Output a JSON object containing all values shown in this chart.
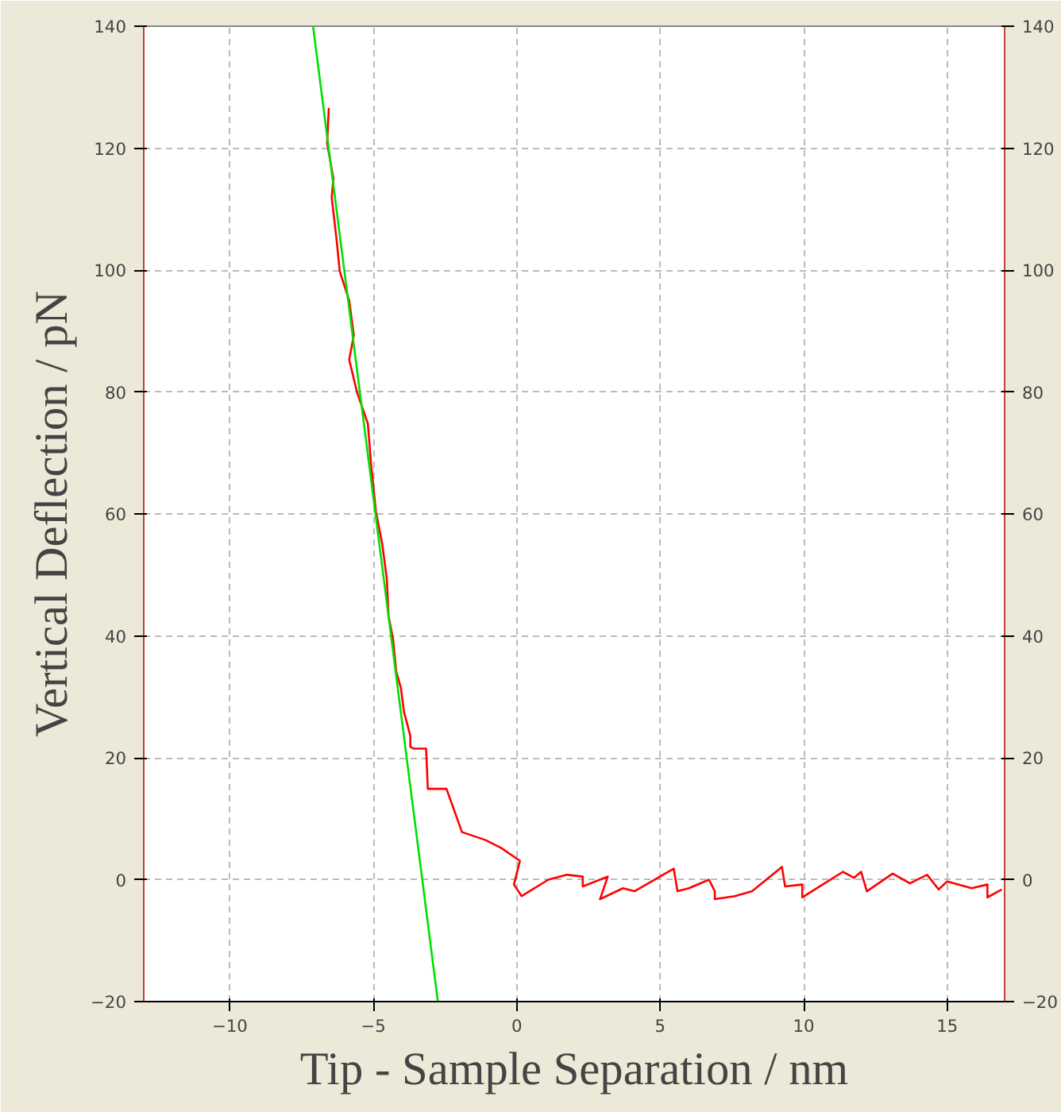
{
  "chart_data": {
    "type": "line",
    "xlabel": "Tip - Sample Separation / nm",
    "ylabel": "Vertical Deflection / pN",
    "xlim": [
      -13,
      17
    ],
    "xticks": [
      -10,
      -5,
      0,
      5,
      10,
      15
    ],
    "ylim": [
      -20,
      140
    ],
    "yticks": [
      -20,
      0,
      20,
      40,
      60,
      80,
      100,
      120,
      140
    ],
    "y2lim": [
      -20,
      140
    ],
    "y2ticks": [
      -20,
      0,
      20,
      40,
      60,
      80,
      100,
      120,
      140
    ],
    "grid": true,
    "line_style": "solid",
    "marker": "none",
    "series": [
      {
        "color": "#ff0000",
        "x": [
          -6.55,
          -6.61,
          -6.39,
          -6.45,
          -6.28,
          -6.17,
          -5.84,
          -5.68,
          -5.84,
          -5.57,
          -5.19,
          -5.08,
          -4.91,
          -4.69,
          -4.53,
          -4.47,
          -4.31,
          -4.2,
          -4.04,
          -3.93,
          -3.71,
          -3.71,
          -3.6,
          -3.16,
          -3.1,
          -2.45,
          -1.91,
          -1.09,
          -0.54,
          0.11,
          -0.1,
          0.17,
          1.1,
          1.75,
          2.3,
          2.3,
          3.17,
          2.9,
          3.7,
          4.1,
          5.47,
          5.6,
          6.0,
          6.7,
          6.9,
          6.9,
          7.6,
          8.2,
          9.24,
          9.35,
          9.95,
          9.95,
          11.37,
          11.75,
          12.0,
          12.2,
          13.1,
          13.7,
          14.3,
          14.7,
          15.0,
          15.85,
          16.4,
          16.4,
          16.9
        ],
        "values": [
          126.6,
          120.8,
          115,
          111.9,
          105,
          99.8,
          95,
          89.3,
          85.3,
          80,
          74.8,
          68.3,
          60.4,
          55.1,
          49.4,
          43.3,
          39.4,
          34.1,
          31.5,
          27.5,
          23.6,
          21.8,
          21.5,
          21.5,
          14.9,
          14.9,
          7.8,
          6.5,
          5.2,
          3.1,
          -0.8,
          -2.7,
          0,
          0.8,
          0.5,
          -1.1,
          0.5,
          -3.2,
          -1.4,
          -1.9,
          1.8,
          -1.9,
          -1.4,
          0,
          -1.9,
          -3.2,
          -2.7,
          -1.9,
          2.1,
          -1.1,
          -0.8,
          -2.9,
          1.3,
          0.3,
          1.3,
          -1.9,
          1,
          -0.6,
          0.8,
          -1.6,
          -0.3,
          -1.4,
          -0.8,
          -2.9,
          -1.6
        ]
      },
      {
        "color": "#00e000",
        "x": [
          -7.1,
          -2.75
        ],
        "values": [
          140,
          -20
        ]
      }
    ]
  }
}
